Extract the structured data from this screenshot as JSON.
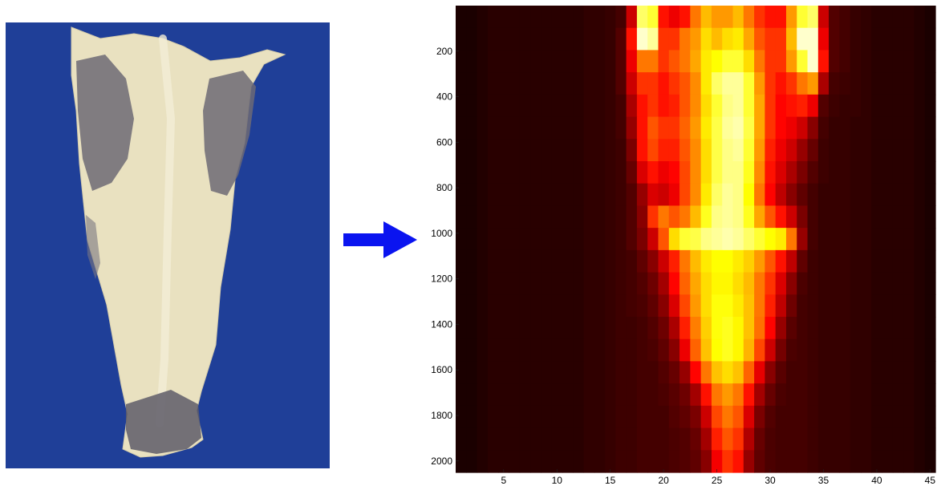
{
  "photo": {
    "subject": "dried-salted-cod-fillet",
    "background_color": "#1f3f98"
  },
  "arrow": {
    "color": "#0a14f0",
    "direction": "right"
  },
  "chart_data": {
    "type": "heatmap",
    "title": "",
    "xlabel": "",
    "ylabel": "",
    "colormap": "hot",
    "xlim": [
      0.5,
      45.5
    ],
    "ylim": [
      2050,
      0
    ],
    "x_ticks": [
      5,
      10,
      15,
      20,
      25,
      30,
      35,
      40,
      45
    ],
    "y_ticks": [
      200,
      400,
      600,
      800,
      1000,
      1200,
      1400,
      1600,
      1800,
      2000
    ],
    "columns": 45,
    "row_y": [
      50,
      150,
      250,
      350,
      450,
      550,
      650,
      750,
      850,
      950,
      1050,
      1150,
      1250,
      1350,
      1450,
      1550,
      1650,
      1750,
      1850,
      1950,
      2050
    ],
    "intensity_rows": [
      [
        0.04,
        0.04,
        0.05,
        0.06,
        0.06,
        0.06,
        0.06,
        0.06,
        0.06,
        0.06,
        0.06,
        0.06,
        0.07,
        0.07,
        0.08,
        0.1,
        0.3,
        0.85,
        0.8,
        0.4,
        0.35,
        0.4,
        0.55,
        0.65,
        0.6,
        0.6,
        0.65,
        0.55,
        0.45,
        0.4,
        0.4,
        0.6,
        0.8,
        0.85,
        0.3,
        0.12,
        0.1,
        0.08,
        0.07,
        0.06,
        0.06,
        0.06,
        0.06,
        0.05,
        0.04
      ],
      [
        0.04,
        0.04,
        0.05,
        0.06,
        0.06,
        0.06,
        0.06,
        0.06,
        0.06,
        0.06,
        0.06,
        0.06,
        0.07,
        0.07,
        0.08,
        0.12,
        0.4,
        0.95,
        0.9,
        0.45,
        0.45,
        0.55,
        0.6,
        0.7,
        0.65,
        0.7,
        0.72,
        0.62,
        0.5,
        0.45,
        0.45,
        0.65,
        0.95,
        0.95,
        0.35,
        0.12,
        0.1,
        0.08,
        0.07,
        0.06,
        0.06,
        0.06,
        0.06,
        0.05,
        0.04
      ],
      [
        0.04,
        0.04,
        0.05,
        0.06,
        0.06,
        0.06,
        0.06,
        0.06,
        0.06,
        0.06,
        0.06,
        0.06,
        0.07,
        0.07,
        0.08,
        0.12,
        0.35,
        0.55,
        0.55,
        0.45,
        0.5,
        0.55,
        0.62,
        0.72,
        0.75,
        0.8,
        0.8,
        0.7,
        0.55,
        0.45,
        0.45,
        0.6,
        0.8,
        0.95,
        0.4,
        0.12,
        0.1,
        0.08,
        0.07,
        0.06,
        0.06,
        0.06,
        0.06,
        0.05,
        0.04
      ],
      [
        0.04,
        0.04,
        0.05,
        0.06,
        0.06,
        0.06,
        0.06,
        0.06,
        0.06,
        0.06,
        0.06,
        0.06,
        0.07,
        0.07,
        0.08,
        0.12,
        0.3,
        0.45,
        0.45,
        0.4,
        0.45,
        0.5,
        0.58,
        0.72,
        0.85,
        0.9,
        0.9,
        0.8,
        0.6,
        0.45,
        0.4,
        0.45,
        0.55,
        0.6,
        0.25,
        0.1,
        0.09,
        0.08,
        0.07,
        0.06,
        0.06,
        0.06,
        0.06,
        0.05,
        0.04
      ],
      [
        0.04,
        0.04,
        0.05,
        0.06,
        0.06,
        0.06,
        0.06,
        0.06,
        0.06,
        0.06,
        0.06,
        0.06,
        0.07,
        0.07,
        0.08,
        0.1,
        0.25,
        0.4,
        0.45,
        0.4,
        0.42,
        0.5,
        0.58,
        0.7,
        0.8,
        0.88,
        0.9,
        0.8,
        0.62,
        0.45,
        0.38,
        0.4,
        0.42,
        0.35,
        0.12,
        0.09,
        0.08,
        0.08,
        0.07,
        0.06,
        0.06,
        0.06,
        0.06,
        0.05,
        0.04
      ],
      [
        0.04,
        0.04,
        0.05,
        0.06,
        0.06,
        0.06,
        0.06,
        0.06,
        0.06,
        0.06,
        0.06,
        0.06,
        0.07,
        0.07,
        0.08,
        0.1,
        0.22,
        0.4,
        0.5,
        0.45,
        0.45,
        0.52,
        0.6,
        0.72,
        0.82,
        0.9,
        0.92,
        0.82,
        0.62,
        0.45,
        0.38,
        0.35,
        0.3,
        0.2,
        0.1,
        0.08,
        0.08,
        0.07,
        0.07,
        0.06,
        0.06,
        0.06,
        0.06,
        0.05,
        0.04
      ],
      [
        0.04,
        0.04,
        0.05,
        0.06,
        0.06,
        0.06,
        0.06,
        0.06,
        0.06,
        0.06,
        0.06,
        0.06,
        0.07,
        0.07,
        0.08,
        0.09,
        0.18,
        0.4,
        0.48,
        0.42,
        0.42,
        0.5,
        0.58,
        0.7,
        0.82,
        0.88,
        0.9,
        0.8,
        0.6,
        0.42,
        0.35,
        0.3,
        0.22,
        0.15,
        0.09,
        0.08,
        0.08,
        0.07,
        0.07,
        0.06,
        0.06,
        0.06,
        0.06,
        0.05,
        0.04
      ],
      [
        0.04,
        0.04,
        0.05,
        0.06,
        0.06,
        0.06,
        0.06,
        0.06,
        0.06,
        0.06,
        0.06,
        0.06,
        0.07,
        0.07,
        0.08,
        0.09,
        0.15,
        0.32,
        0.4,
        0.35,
        0.38,
        0.48,
        0.58,
        0.7,
        0.82,
        0.88,
        0.88,
        0.78,
        0.58,
        0.4,
        0.32,
        0.25,
        0.18,
        0.12,
        0.09,
        0.08,
        0.08,
        0.07,
        0.07,
        0.06,
        0.06,
        0.06,
        0.06,
        0.05,
        0.04
      ],
      [
        0.04,
        0.04,
        0.05,
        0.06,
        0.06,
        0.06,
        0.06,
        0.06,
        0.06,
        0.06,
        0.06,
        0.06,
        0.07,
        0.07,
        0.08,
        0.09,
        0.12,
        0.22,
        0.32,
        0.3,
        0.35,
        0.48,
        0.58,
        0.72,
        0.85,
        0.9,
        0.88,
        0.75,
        0.55,
        0.38,
        0.28,
        0.2,
        0.14,
        0.1,
        0.08,
        0.08,
        0.08,
        0.07,
        0.07,
        0.06,
        0.06,
        0.06,
        0.06,
        0.05,
        0.04
      ],
      [
        0.04,
        0.04,
        0.05,
        0.06,
        0.06,
        0.06,
        0.06,
        0.06,
        0.06,
        0.06,
        0.06,
        0.06,
        0.07,
        0.07,
        0.08,
        0.09,
        0.12,
        0.2,
        0.45,
        0.55,
        0.5,
        0.55,
        0.65,
        0.78,
        0.88,
        0.9,
        0.88,
        0.78,
        0.62,
        0.5,
        0.4,
        0.3,
        0.18,
        0.1,
        0.08,
        0.08,
        0.08,
        0.07,
        0.07,
        0.06,
        0.06,
        0.06,
        0.06,
        0.05,
        0.04
      ],
      [
        0.04,
        0.04,
        0.05,
        0.06,
        0.06,
        0.06,
        0.06,
        0.06,
        0.06,
        0.06,
        0.06,
        0.06,
        0.07,
        0.07,
        0.08,
        0.09,
        0.12,
        0.18,
        0.3,
        0.5,
        0.7,
        0.8,
        0.82,
        0.88,
        0.9,
        0.92,
        0.9,
        0.85,
        0.8,
        0.75,
        0.72,
        0.55,
        0.22,
        0.1,
        0.08,
        0.08,
        0.08,
        0.07,
        0.07,
        0.06,
        0.06,
        0.06,
        0.06,
        0.05,
        0.04
      ],
      [
        0.04,
        0.04,
        0.05,
        0.06,
        0.06,
        0.06,
        0.06,
        0.06,
        0.06,
        0.06,
        0.06,
        0.06,
        0.07,
        0.07,
        0.08,
        0.09,
        0.1,
        0.14,
        0.2,
        0.3,
        0.42,
        0.55,
        0.65,
        0.72,
        0.75,
        0.75,
        0.72,
        0.68,
        0.6,
        0.5,
        0.4,
        0.28,
        0.14,
        0.09,
        0.08,
        0.08,
        0.08,
        0.07,
        0.07,
        0.06,
        0.06,
        0.06,
        0.06,
        0.05,
        0.04
      ],
      [
        0.04,
        0.04,
        0.05,
        0.06,
        0.06,
        0.06,
        0.06,
        0.06,
        0.06,
        0.06,
        0.06,
        0.06,
        0.07,
        0.07,
        0.08,
        0.09,
        0.1,
        0.12,
        0.16,
        0.24,
        0.38,
        0.52,
        0.62,
        0.7,
        0.74,
        0.74,
        0.7,
        0.65,
        0.55,
        0.45,
        0.32,
        0.2,
        0.11,
        0.09,
        0.08,
        0.08,
        0.08,
        0.07,
        0.07,
        0.06,
        0.06,
        0.06,
        0.06,
        0.05,
        0.04
      ],
      [
        0.04,
        0.04,
        0.05,
        0.06,
        0.06,
        0.06,
        0.06,
        0.06,
        0.06,
        0.06,
        0.06,
        0.06,
        0.07,
        0.07,
        0.08,
        0.09,
        0.1,
        0.11,
        0.14,
        0.2,
        0.32,
        0.48,
        0.6,
        0.7,
        0.76,
        0.76,
        0.72,
        0.66,
        0.55,
        0.42,
        0.28,
        0.16,
        0.1,
        0.09,
        0.08,
        0.08,
        0.08,
        0.07,
        0.07,
        0.06,
        0.06,
        0.06,
        0.06,
        0.05,
        0.04
      ],
      [
        0.04,
        0.04,
        0.05,
        0.06,
        0.06,
        0.06,
        0.06,
        0.06,
        0.06,
        0.06,
        0.06,
        0.06,
        0.07,
        0.07,
        0.08,
        0.09,
        0.09,
        0.1,
        0.12,
        0.16,
        0.25,
        0.42,
        0.56,
        0.68,
        0.76,
        0.78,
        0.74,
        0.66,
        0.54,
        0.38,
        0.22,
        0.13,
        0.1,
        0.09,
        0.08,
        0.08,
        0.08,
        0.07,
        0.07,
        0.06,
        0.06,
        0.06,
        0.06,
        0.05,
        0.04
      ],
      [
        0.04,
        0.04,
        0.05,
        0.06,
        0.06,
        0.06,
        0.06,
        0.06,
        0.06,
        0.06,
        0.06,
        0.06,
        0.07,
        0.07,
        0.08,
        0.09,
        0.09,
        0.1,
        0.11,
        0.14,
        0.2,
        0.35,
        0.52,
        0.66,
        0.75,
        0.78,
        0.74,
        0.64,
        0.48,
        0.3,
        0.17,
        0.11,
        0.1,
        0.09,
        0.08,
        0.08,
        0.08,
        0.07,
        0.07,
        0.06,
        0.06,
        0.06,
        0.06,
        0.05,
        0.04
      ],
      [
        0.04,
        0.04,
        0.05,
        0.06,
        0.06,
        0.06,
        0.06,
        0.06,
        0.06,
        0.06,
        0.06,
        0.06,
        0.07,
        0.07,
        0.08,
        0.09,
        0.09,
        0.1,
        0.1,
        0.12,
        0.15,
        0.22,
        0.38,
        0.55,
        0.66,
        0.7,
        0.66,
        0.52,
        0.34,
        0.2,
        0.13,
        0.1,
        0.1,
        0.09,
        0.08,
        0.08,
        0.08,
        0.07,
        0.07,
        0.06,
        0.06,
        0.06,
        0.06,
        0.05,
        0.04
      ],
      [
        0.04,
        0.04,
        0.05,
        0.06,
        0.06,
        0.06,
        0.06,
        0.06,
        0.06,
        0.06,
        0.06,
        0.06,
        0.07,
        0.07,
        0.08,
        0.09,
        0.09,
        0.1,
        0.1,
        0.11,
        0.13,
        0.16,
        0.24,
        0.4,
        0.55,
        0.6,
        0.55,
        0.4,
        0.24,
        0.15,
        0.11,
        0.1,
        0.1,
        0.09,
        0.08,
        0.08,
        0.08,
        0.07,
        0.07,
        0.06,
        0.06,
        0.06,
        0.06,
        0.05,
        0.04
      ],
      [
        0.04,
        0.04,
        0.05,
        0.06,
        0.06,
        0.06,
        0.06,
        0.06,
        0.06,
        0.06,
        0.06,
        0.06,
        0.07,
        0.07,
        0.08,
        0.09,
        0.09,
        0.1,
        0.1,
        0.1,
        0.12,
        0.14,
        0.18,
        0.3,
        0.48,
        0.55,
        0.5,
        0.32,
        0.18,
        0.12,
        0.1,
        0.1,
        0.1,
        0.09,
        0.08,
        0.08,
        0.08,
        0.07,
        0.07,
        0.06,
        0.06,
        0.06,
        0.06,
        0.05,
        0.04
      ],
      [
        0.04,
        0.04,
        0.05,
        0.06,
        0.06,
        0.06,
        0.06,
        0.06,
        0.06,
        0.06,
        0.06,
        0.06,
        0.07,
        0.07,
        0.08,
        0.09,
        0.09,
        0.1,
        0.1,
        0.1,
        0.11,
        0.12,
        0.15,
        0.24,
        0.42,
        0.5,
        0.45,
        0.26,
        0.15,
        0.11,
        0.1,
        0.1,
        0.1,
        0.09,
        0.08,
        0.08,
        0.08,
        0.07,
        0.07,
        0.06,
        0.06,
        0.06,
        0.06,
        0.05,
        0.04
      ],
      [
        0.04,
        0.04,
        0.05,
        0.06,
        0.06,
        0.06,
        0.06,
        0.06,
        0.06,
        0.06,
        0.06,
        0.06,
        0.07,
        0.07,
        0.08,
        0.09,
        0.09,
        0.1,
        0.1,
        0.1,
        0.11,
        0.12,
        0.14,
        0.2,
        0.36,
        0.45,
        0.4,
        0.22,
        0.14,
        0.11,
        0.1,
        0.1,
        0.1,
        0.09,
        0.08,
        0.08,
        0.08,
        0.07,
        0.07,
        0.06,
        0.06,
        0.06,
        0.06,
        0.05,
        0.04
      ]
    ]
  }
}
